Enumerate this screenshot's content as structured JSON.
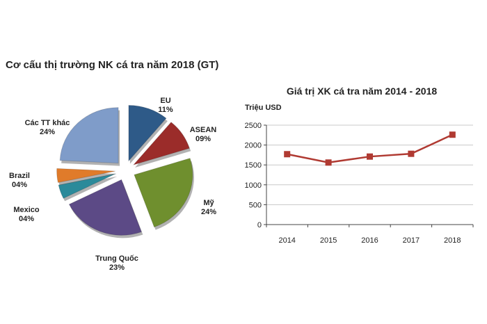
{
  "chart_data": [
    {
      "type": "pie",
      "title": "Cơ cấu thị trường NK cá tra năm 2018 (GT)",
      "slices": [
        {
          "name": "EU",
          "value": 11,
          "label": "11%",
          "color": "#2e5a88"
        },
        {
          "name": "ASEAN",
          "value": 9,
          "label": "09%",
          "color": "#9b2c2a"
        },
        {
          "name": "Mỹ",
          "value": 24,
          "label": "24%",
          "color": "#6f8f2e"
        },
        {
          "name": "Trung Quốc",
          "value": 23,
          "label": "23%",
          "color": "#5c4a86"
        },
        {
          "name": "Mexico",
          "value": 4,
          "label": "04%",
          "color": "#2b8a9a"
        },
        {
          "name": "Brazil",
          "value": 4,
          "label": "04%",
          "color": "#e07b2a"
        },
        {
          "name": "Các TT khác",
          "value": 24,
          "label": "24%",
          "color": "#7f9cc9"
        }
      ],
      "exploded": true
    },
    {
      "type": "line",
      "title": "Giá trị XK cá tra năm 2014 - 2018",
      "ylabel": "Triệu USD",
      "xlabel": "",
      "categories": [
        "2014",
        "2015",
        "2016",
        "2017",
        "2018"
      ],
      "values": [
        1770,
        1560,
        1710,
        1780,
        2260
      ],
      "ylim": [
        0,
        2500
      ],
      "yticks": [
        "0",
        "500",
        "1000",
        "1500",
        "2000",
        "2500"
      ],
      "grid": true,
      "color": "#b03a32",
      "marker": "square"
    }
  ]
}
